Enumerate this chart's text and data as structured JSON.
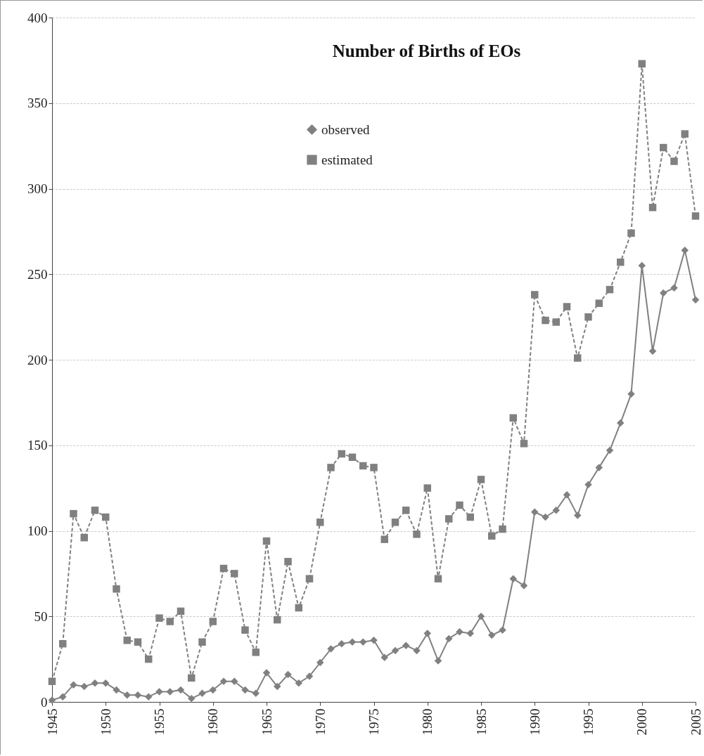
{
  "chart_data": {
    "type": "line",
    "title": "Number of Births of EOs",
    "x": [
      1945,
      1946,
      1947,
      1948,
      1949,
      1950,
      1951,
      1952,
      1953,
      1954,
      1955,
      1956,
      1957,
      1958,
      1959,
      1960,
      1961,
      1962,
      1963,
      1964,
      1965,
      1966,
      1967,
      1968,
      1969,
      1970,
      1971,
      1972,
      1973,
      1974,
      1975,
      1976,
      1977,
      1978,
      1979,
      1980,
      1981,
      1982,
      1983,
      1984,
      1985,
      1986,
      1987,
      1988,
      1989,
      1990,
      1991,
      1992,
      1993,
      1994,
      1995,
      1996,
      1997,
      1998,
      1999,
      2000,
      2001,
      2002,
      2003,
      2004,
      2005
    ],
    "series": [
      {
        "name": "observed",
        "color": "#808080",
        "marker": "diamond",
        "line_style": "solid",
        "values": [
          1,
          3,
          10,
          9,
          11,
          11,
          7,
          4,
          4,
          3,
          6,
          6,
          7,
          2,
          5,
          7,
          12,
          12,
          7,
          5,
          17,
          9,
          16,
          11,
          15,
          23,
          31,
          34,
          35,
          35,
          36,
          26,
          30,
          33,
          30,
          40,
          24,
          37,
          41,
          40,
          50,
          39,
          42,
          72,
          68,
          111,
          108,
          112,
          121,
          109,
          127,
          137,
          147,
          163,
          180,
          255,
          205,
          239,
          242,
          264,
          235
        ]
      },
      {
        "name": "estimated",
        "color": "#808080",
        "marker": "square",
        "line_style": "dashed",
        "values": [
          12,
          34,
          110,
          96,
          112,
          108,
          66,
          36,
          35,
          25,
          49,
          47,
          53,
          14,
          35,
          47,
          78,
          75,
          42,
          29,
          94,
          48,
          82,
          55,
          72,
          105,
          137,
          145,
          143,
          138,
          137,
          95,
          105,
          112,
          98,
          125,
          72,
          107,
          115,
          108,
          130,
          97,
          101,
          166,
          151,
          238,
          223,
          222,
          231,
          201,
          225,
          233,
          241,
          257,
          274,
          373,
          289,
          324,
          316,
          332,
          284
        ]
      }
    ],
    "xlim": [
      1945,
      2005
    ],
    "xticks": [
      1945,
      1950,
      1955,
      1960,
      1965,
      1970,
      1975,
      1980,
      1985,
      1990,
      1995,
      2000,
      2005
    ],
    "ylim": [
      0,
      400
    ],
    "yticks": [
      0,
      50,
      100,
      150,
      200,
      250,
      300,
      350,
      400
    ],
    "grid": "y",
    "legend": "top"
  }
}
